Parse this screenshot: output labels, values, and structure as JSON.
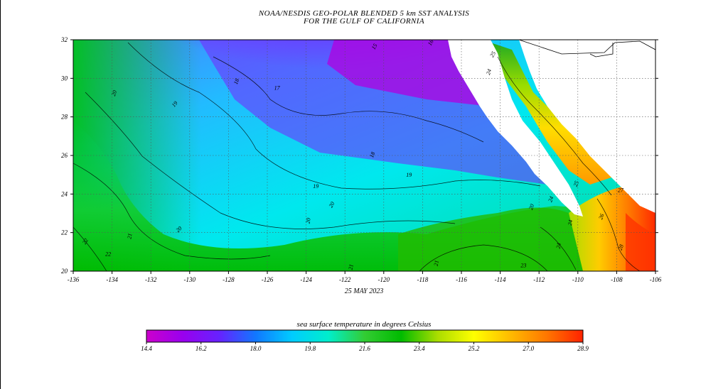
{
  "title": {
    "line1": "NOAA/NESDIS GEO-POLAR BLENDED 5 km SST ANALYSIS",
    "line2": "FOR THE GULF OF CALIFORNIA"
  },
  "map": {
    "date": "25 MAY 2023",
    "x_axis_ticks": [
      "-136",
      "-134",
      "-132",
      "-130",
      "-128",
      "-126",
      "-124",
      "-122",
      "-120",
      "-118",
      "-116",
      "-114",
      "-112",
      "-110",
      "-108",
      "-106"
    ],
    "y_axis_ticks": [
      "32",
      "30",
      "28",
      "26",
      "24",
      "22",
      "20"
    ],
    "longitude_range": [
      -136,
      -106
    ],
    "latitude_range": [
      20,
      32
    ],
    "contour_labels": [
      {
        "text": "15",
        "lon": -120.4,
        "lat": 31.6,
        "rotate": -60
      },
      {
        "text": "16",
        "lon": -117.5,
        "lat": 31.8,
        "rotate": -60
      },
      {
        "text": "17",
        "lon": -125.5,
        "lat": 29.4,
        "rotate": 0
      },
      {
        "text": "18",
        "lon": -127.5,
        "lat": 29.8,
        "rotate": -70
      },
      {
        "text": "18",
        "lon": -120.5,
        "lat": 26.0,
        "rotate": -70
      },
      {
        "text": "19",
        "lon": -130.7,
        "lat": 28.6,
        "rotate": -50
      },
      {
        "text": "19",
        "lon": -123.5,
        "lat": 24.3,
        "rotate": 0
      },
      {
        "text": "19",
        "lon": -118.7,
        "lat": 24.9,
        "rotate": 0
      },
      {
        "text": "20",
        "lon": -133.8,
        "lat": 29.2,
        "rotate": -70
      },
      {
        "text": "20",
        "lon": -130.5,
        "lat": 22.1,
        "rotate": -40
      },
      {
        "text": "20",
        "lon": -122.6,
        "lat": 23.4,
        "rotate": -60
      },
      {
        "text": "20",
        "lon": -123.8,
        "lat": 22.6,
        "rotate": -80
      },
      {
        "text": "21",
        "lon": -133.0,
        "lat": 21.8,
        "rotate": -80
      },
      {
        "text": "21",
        "lon": -121.6,
        "lat": 20.2,
        "rotate": -80
      },
      {
        "text": "21",
        "lon": -117.2,
        "lat": 20.4,
        "rotate": -80
      },
      {
        "text": "22",
        "lon": -135.3,
        "lat": 21.5,
        "rotate": -60
      },
      {
        "text": "22",
        "lon": -134.2,
        "lat": 20.8,
        "rotate": 0
      },
      {
        "text": "23",
        "lon": -112.8,
        "lat": 20.2,
        "rotate": 0
      },
      {
        "text": "24",
        "lon": -114.5,
        "lat": 30.3,
        "rotate": -70
      },
      {
        "text": "25",
        "lon": -114.3,
        "lat": 31.2,
        "rotate": -60
      },
      {
        "text": "20",
        "lon": -112.3,
        "lat": 23.3,
        "rotate": -70
      },
      {
        "text": "24",
        "lon": -111.3,
        "lat": 23.7,
        "rotate": -70
      },
      {
        "text": "25",
        "lon": -110.0,
        "lat": 24.5,
        "rotate": -70
      },
      {
        "text": "27",
        "lon": -107.8,
        "lat": 24.1,
        "rotate": 0
      },
      {
        "text": "26",
        "lon": -108.7,
        "lat": 22.8,
        "rotate": -70
      },
      {
        "text": "28",
        "lon": -107.7,
        "lat": 21.2,
        "rotate": -70
      },
      {
        "text": "24",
        "lon": -110.3,
        "lat": 22.5,
        "rotate": -80
      },
      {
        "text": "24",
        "lon": -110.9,
        "lat": 21.3,
        "rotate": -80
      }
    ]
  },
  "legend": {
    "title": "sea surface temperature in degrees Celsius",
    "labels": [
      "14.4",
      "16.2",
      "18.0",
      "19.8",
      "21.6",
      "23.4",
      "25.2",
      "27.0",
      "28.9"
    ],
    "colors": [
      "#cc00cc",
      "#9900ee",
      "#6622ff",
      "#1177ff",
      "#00ccff",
      "#00eecc",
      "#33cc33",
      "#00bb00",
      "#aadd00",
      "#ffff00",
      "#ffbb00",
      "#ff7700",
      "#ff2200"
    ]
  }
}
